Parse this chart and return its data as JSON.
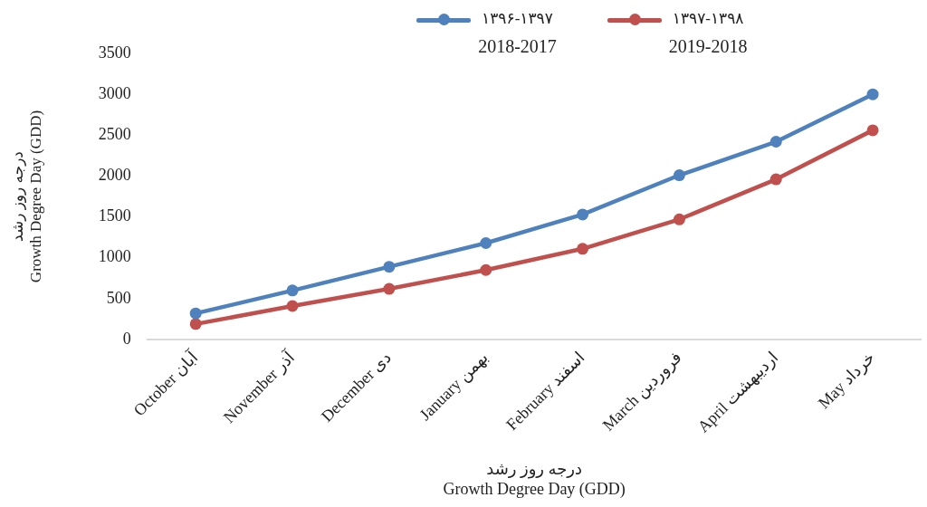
{
  "chart_data": {
    "type": "line",
    "categories": [
      "October آبان",
      "November آذر",
      "December دی",
      "January بهمن",
      "February اسفند",
      "March فروردین",
      "April اردیبهشت",
      "May خرداد"
    ],
    "series": [
      {
        "name": "۱۳۹۶-۱۳۹۷\n2018-2017",
        "color": "#4f81bd",
        "values": [
          320,
          600,
          890,
          1180,
          1530,
          2010,
          2420,
          3000
        ]
      },
      {
        "name": "۱۳۹۷-۱۳۹۸\n2019-2018",
        "color": "#c0504d",
        "values": [
          190,
          410,
          620,
          850,
          1110,
          1470,
          1960,
          2560
        ]
      }
    ],
    "xlabel": "درجه روز رشد\nGrowth Degree Day (GDD)",
    "ylabel": "درجه روز رشد\nGrowth Degree Day (GDD)",
    "ylim": [
      0,
      3500
    ],
    "yticks": [
      0,
      500,
      1000,
      1500,
      2000,
      2500,
      3000,
      3500
    ],
    "grid": false,
    "legend": "top",
    "marker": "circle",
    "line_style": "solid"
  }
}
